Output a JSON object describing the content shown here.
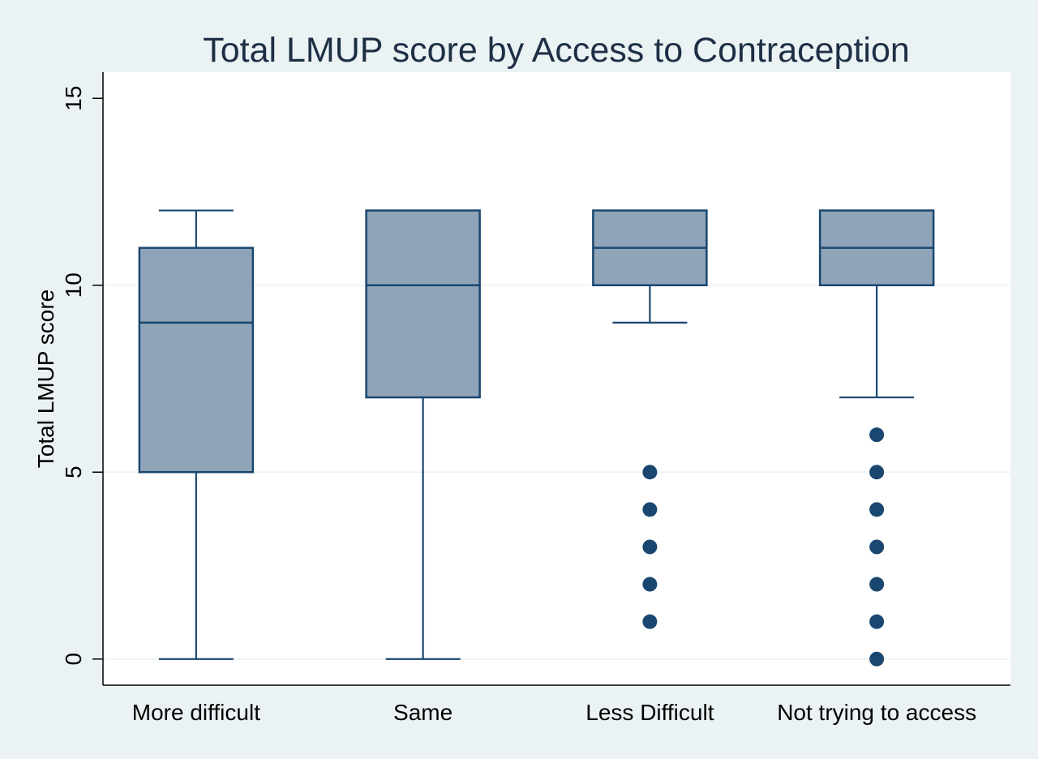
{
  "chart_data": {
    "type": "box",
    "title": "Total LMUP score by Access to Contraception",
    "xlabel": "",
    "ylabel": "Total LMUP score",
    "ylim": [
      -0.7,
      15.7
    ],
    "yticks": [
      0,
      5,
      10,
      15
    ],
    "grid": true,
    "legend": "none",
    "categories": [
      "More difficult",
      "Same",
      "Less Difficult",
      "Not trying to access"
    ],
    "boxes": [
      {
        "whisker_low": 0,
        "q1": 5,
        "median": 9,
        "q3": 11,
        "whisker_high": 12,
        "outliers": []
      },
      {
        "whisker_low": 0,
        "q1": 7,
        "median": 10,
        "q3": 12,
        "whisker_high": 12,
        "outliers": []
      },
      {
        "whisker_low": 9,
        "q1": 10,
        "median": 11,
        "q3": 12,
        "whisker_high": 12,
        "outliers": [
          1,
          2,
          3,
          4,
          5
        ]
      },
      {
        "whisker_low": 7,
        "q1": 10,
        "median": 11,
        "q3": 12,
        "whisker_high": 12,
        "outliers": [
          0,
          1,
          2,
          3,
          4,
          5,
          6
        ]
      }
    ],
    "colors": {
      "box_fill": "#8fa4b8",
      "line": "#1a476f",
      "plot_bg": "#ffffff",
      "outer_bg": "#eaf2f3",
      "grid": "#eaf2f3",
      "text": "#1e2f45"
    }
  }
}
